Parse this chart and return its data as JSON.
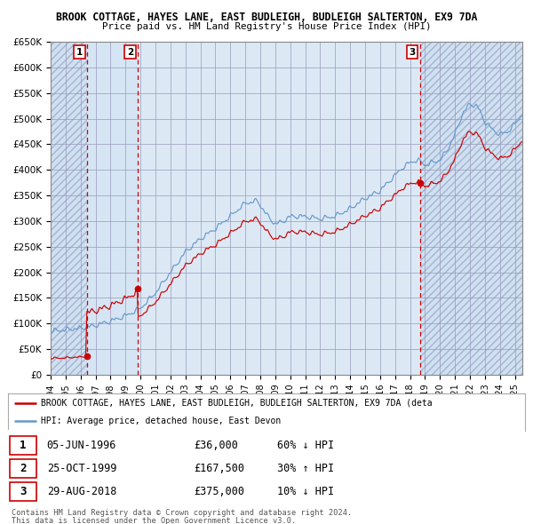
{
  "title1": "BROOK COTTAGE, HAYES LANE, EAST BUDLEIGH, BUDLEIGH SALTERTON, EX9 7DA",
  "title2": "Price paid vs. HM Land Registry's House Price Index (HPI)",
  "ylabel_ticks": [
    "£0",
    "£50K",
    "£100K",
    "£150K",
    "£200K",
    "£250K",
    "£300K",
    "£350K",
    "£400K",
    "£450K",
    "£500K",
    "£550K",
    "£600K",
    "£650K"
  ],
  "ytick_values": [
    0,
    50000,
    100000,
    150000,
    200000,
    250000,
    300000,
    350000,
    400000,
    450000,
    500000,
    550000,
    600000,
    650000
  ],
  "xmin": 1994.0,
  "xmax": 2025.5,
  "ymin": 0,
  "ymax": 650000,
  "sale_dates": [
    1996.43,
    1999.81,
    2018.66
  ],
  "sale_prices": [
    36000,
    167500,
    375000
  ],
  "sale_labels": [
    "1",
    "2",
    "3"
  ],
  "sale_label_infos": [
    "05-JUN-1996",
    "25-OCT-1999",
    "29-AUG-2018"
  ],
  "sale_prices_str": [
    "£36,000",
    "£167,500",
    "£375,000"
  ],
  "sale_hpi_pct": [
    "60% ↓ HPI",
    "30% ↑ HPI",
    "10% ↓ HPI"
  ],
  "red_color": "#cc0000",
  "blue_color": "#6699cc",
  "bg_color": "#dce9f5",
  "grid_color": "#9999bb",
  "legend_label_red": "BROOK COTTAGE, HAYES LANE, EAST BUDLEIGH, BUDLEIGH SALTERTON, EX9 7DA (deta",
  "legend_label_blue": "HPI: Average price, detached house, East Devon",
  "footer1": "Contains HM Land Registry data © Crown copyright and database right 2024.",
  "footer2": "This data is licensed under the Open Government Licence v3.0.",
  "vline_dates": [
    1996.43,
    1999.81,
    2018.66
  ]
}
